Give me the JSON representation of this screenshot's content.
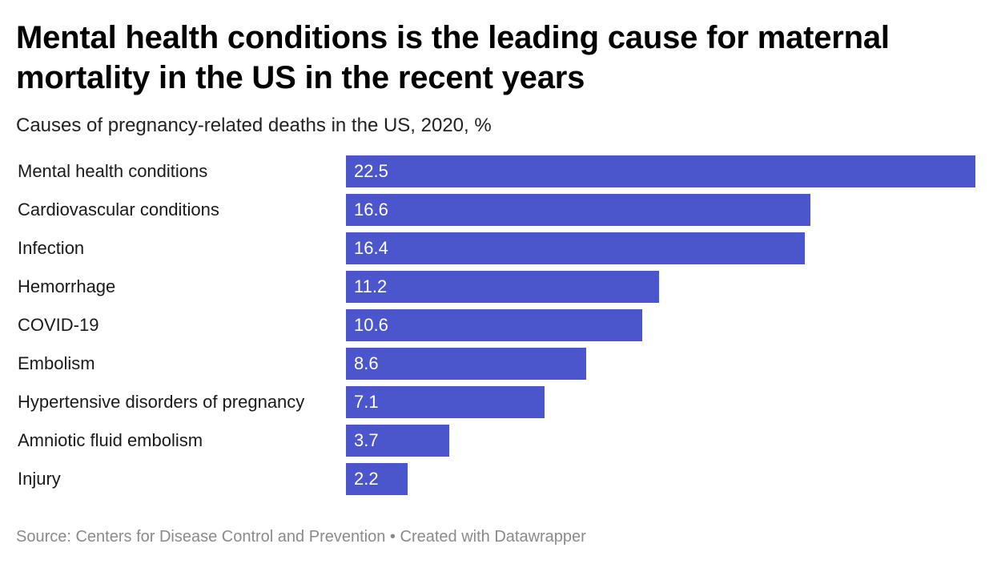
{
  "title": "Mental health conditions is the leading cause for maternal mortality in the US in the recent years",
  "subtitle": "Causes of pregnancy-related deaths in the US, 2020, %",
  "footer": {
    "source": "Source: Centers for Disease Control and Prevention",
    "separator": "•",
    "credit": "Created with Datawrapper"
  },
  "colors": {
    "bar": "#4b55cc",
    "footer_text": "#8a8a8a"
  },
  "chart_data": {
    "type": "bar",
    "orientation": "horizontal",
    "title": "Mental health conditions is the leading cause for maternal mortality in the US in the recent years",
    "subtitle": "Causes of pregnancy-related deaths in the US, 2020, %",
    "xlabel": "",
    "ylabel": "",
    "categories": [
      "Mental health conditions",
      "Cardiovascular conditions",
      "Infection",
      "Hemorrhage",
      "COVID-19",
      "Embolism",
      "Hypertensive disorders of pregnancy",
      "Amniotic fluid embolism",
      "Injury"
    ],
    "values": [
      22.5,
      16.6,
      16.4,
      11.2,
      10.6,
      8.6,
      7.1,
      3.7,
      2.2
    ],
    "value_labels": [
      "22.5",
      "16.6",
      "16.4",
      "11.2",
      "10.6",
      "8.6",
      "7.1",
      "3.7",
      "2.2"
    ],
    "xlim": [
      0,
      22.5
    ],
    "grid": false,
    "legend": "none"
  }
}
